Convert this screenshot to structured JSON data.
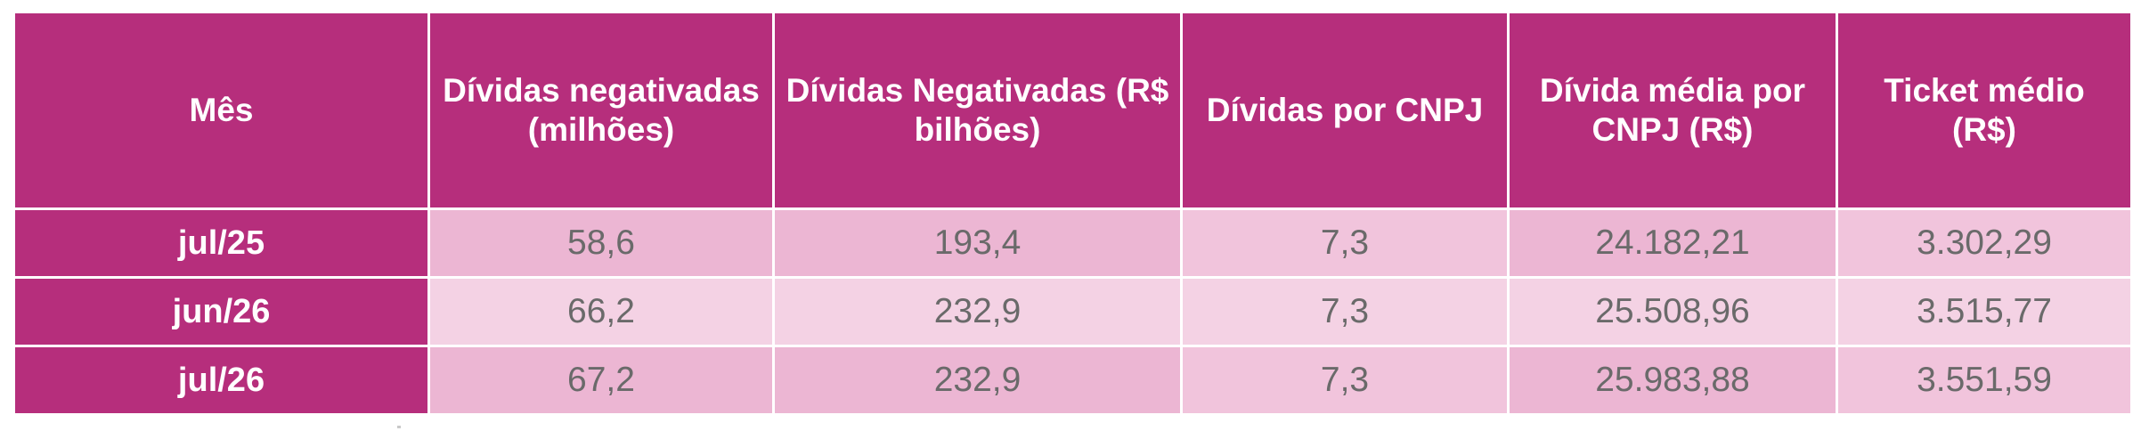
{
  "chart_data": {
    "type": "table",
    "columns": [
      "Mês",
      "Dívidas negativadas (milhões)",
      "Dívidas Negativadas (R$ bilhões)",
      "Dívidas por CNPJ",
      "Dívida média por CNPJ (R$)",
      "Ticket médio (R$)"
    ],
    "rows": [
      {
        "month": "jul/25",
        "values": [
          "58,6",
          "193,4",
          "7,3",
          "24.182,21",
          "3.302,29"
        ]
      },
      {
        "month": "jun/26",
        "values": [
          "66,2",
          "232,9",
          "7,3",
          "25.508,96",
          "3.515,77"
        ]
      },
      {
        "month": "jul/26",
        "values": [
          "67,2",
          "232,9",
          "7,3",
          "25.983,88",
          "3.551,59"
        ]
      }
    ],
    "colors": {
      "header_bg": "#b62e7c",
      "header_text": "#ffffff",
      "row_dark": "#ecb6d3",
      "row_light": "#f4d2e4",
      "cell_text": "#6a6a6a"
    }
  }
}
